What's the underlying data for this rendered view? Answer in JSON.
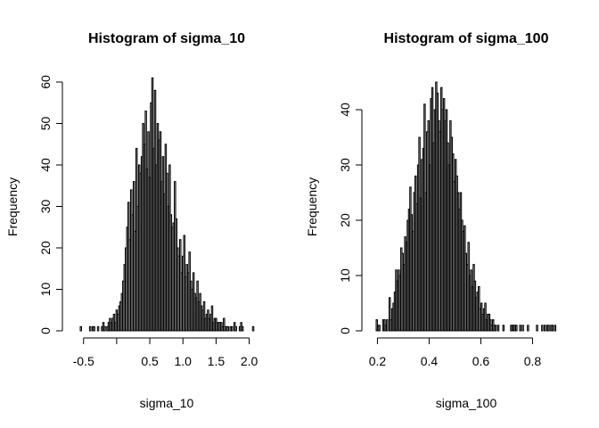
{
  "chart_data": [
    {
      "type": "bar",
      "title": "Histogram of sigma_10",
      "xlabel": "sigma_10",
      "ylabel": "Frequency",
      "xlim": [
        -0.55,
        2.1
      ],
      "ylim": [
        0,
        60
      ],
      "xticks": [
        -0.5,
        0.0,
        0.5,
        1.0,
        1.5,
        2.0
      ],
      "xtick_labels": [
        "-0.5",
        "",
        "0.5",
        "1.0",
        "1.5",
        "2.0"
      ],
      "yticks": [
        0,
        10,
        20,
        30,
        40,
        50,
        60
      ],
      "ytick_labels": [
        "0",
        "10",
        "20",
        "30",
        "40",
        "50",
        "60"
      ],
      "bin_start": -0.55,
      "bin_width": 0.02,
      "values": [
        1,
        0,
        0,
        0,
        0,
        0,
        0,
        1,
        0,
        1,
        1,
        0,
        0,
        1,
        0,
        0,
        1,
        2,
        1,
        0,
        1,
        2,
        3,
        2,
        3,
        4,
        2,
        5,
        4,
        6,
        7,
        9,
        12,
        16,
        20,
        25,
        31,
        22,
        34,
        28,
        36,
        24,
        44,
        30,
        40,
        38,
        42,
        50,
        45,
        53,
        39,
        48,
        37,
        55,
        61,
        44,
        58,
        40,
        50,
        46,
        48,
        36,
        42,
        33,
        45,
        38,
        30,
        40,
        28,
        25,
        26,
        36,
        27,
        20,
        18,
        22,
        14,
        18,
        23,
        13,
        16,
        14,
        19,
        12,
        10,
        14,
        9,
        8,
        12,
        7,
        9,
        6,
        5,
        7,
        3,
        4,
        5,
        3,
        4,
        6,
        2,
        3,
        3,
        2,
        2,
        2,
        2,
        1,
        3,
        1,
        1,
        1,
        0,
        1,
        1,
        0,
        2,
        1,
        0,
        0,
        1,
        2,
        1,
        0,
        0,
        0,
        0,
        0,
        0,
        0,
        1,
        0,
        0,
        0
      ]
    },
    {
      "type": "bar",
      "title": "Histogram of sigma_100",
      "xlabel": "sigma_100",
      "ylabel": "Frequency",
      "xlim": [
        0.195,
        0.895
      ],
      "ylim": [
        0,
        45
      ],
      "xticks": [
        0.2,
        0.4,
        0.6,
        0.8
      ],
      "xtick_labels": [
        "0.2",
        "0.4",
        "0.6",
        "0.8"
      ],
      "yticks": [
        0,
        10,
        20,
        30,
        40
      ],
      "ytick_labels": [
        "0",
        "10",
        "20",
        "30",
        "40"
      ],
      "bin_start": 0.195,
      "bin_width": 0.005,
      "values": [
        2,
        1,
        1,
        0,
        0,
        2,
        2,
        1,
        2,
        0,
        6,
        2,
        4,
        5,
        7,
        11,
        9,
        11,
        10,
        15,
        14,
        12,
        17,
        16,
        20,
        22,
        26,
        21,
        18,
        25,
        28,
        23,
        30,
        35,
        24,
        31,
        33,
        41,
        25,
        36,
        38,
        30,
        42,
        44,
        34,
        40,
        45,
        43,
        38,
        36,
        44,
        40,
        42,
        38,
        40,
        34,
        30,
        38,
        35,
        32,
        27,
        31,
        28,
        25,
        22,
        25,
        20,
        18,
        19,
        14,
        12,
        16,
        10,
        11,
        8,
        12,
        9,
        6,
        7,
        8,
        4,
        5,
        3,
        4,
        5,
        2,
        3,
        3,
        2,
        1,
        2,
        1,
        1,
        0,
        1,
        0,
        0,
        0,
        1,
        0,
        0,
        0,
        0,
        0,
        1,
        1,
        1,
        1,
        1,
        0,
        0,
        1,
        0,
        1,
        0,
        0,
        0,
        1,
        0,
        0,
        0,
        0,
        0,
        0,
        1,
        0,
        0,
        0,
        1,
        0,
        1,
        0,
        1,
        1,
        0,
        1,
        1,
        0,
        1,
        0,
        0
      ]
    }
  ]
}
